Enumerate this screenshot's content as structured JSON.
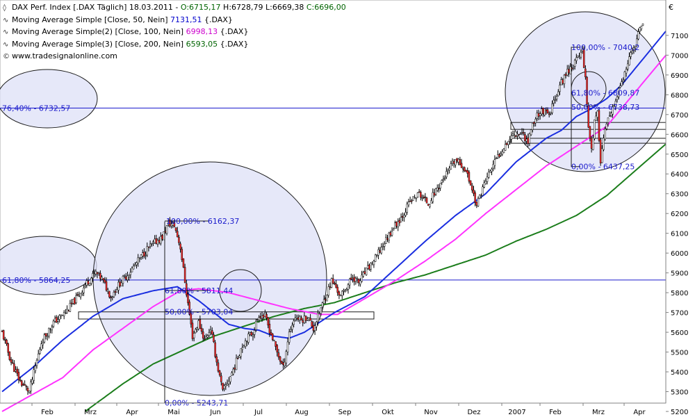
{
  "header": {
    "instrument": "DAX Perf. Index [.DAX  Täglich]",
    "date": "18.03.2011",
    "ohlc": [
      {
        "label": "O:",
        "value": "6715,17",
        "color": "#006400"
      },
      {
        "label": "H:",
        "value": "6728,79",
        "color": "#000000"
      },
      {
        "label": "L:",
        "value": "6669,38",
        "color": "#000000"
      },
      {
        "label": "C:",
        "value": "6696,00",
        "color": "#006400"
      }
    ]
  },
  "indicators": [
    {
      "name": "Moving Average Simple [Close, 50, Nein]",
      "value": "7131,51",
      "suffix": "{.DAX}",
      "color": "#0000cc"
    },
    {
      "name": "Moving Average Simple(2) [Close, 100, Nein]",
      "value": "6998,13",
      "suffix": "{.DAX}",
      "color": "#cc00cc"
    },
    {
      "name": "Moving Average Simple(3) [Close, 200, Nein]",
      "value": "6593,05",
      "suffix": "{.DAX}",
      "color": "#006400"
    }
  ],
  "watermark": "www.tradesignalonline.com",
  "chart_data": {
    "type": "candlestick",
    "currency": "€",
    "y_ticks": [
      5200,
      5300,
      5400,
      5500,
      5600,
      5700,
      5800,
      5900,
      6000,
      6100,
      6200,
      6300,
      6400,
      6500,
      6600,
      6700,
      6800,
      6900,
      7000,
      7100
    ],
    "x_ticks": [
      "Feb",
      "Mrz",
      "Apr",
      "Mai",
      "Jun",
      "Jul",
      "Aug",
      "Sep",
      "Okt",
      "Nov",
      "Dez",
      "2007",
      "Feb",
      "Mrz",
      "Apr"
    ],
    "price_path": [
      [
        0,
        5600
      ],
      [
        6,
        5450
      ],
      [
        12,
        5350
      ],
      [
        18,
        5300
      ],
      [
        26,
        5550
      ],
      [
        34,
        5650
      ],
      [
        42,
        5700
      ],
      [
        50,
        5780
      ],
      [
        56,
        5850
      ],
      [
        62,
        5900
      ],
      [
        66,
        5870
      ],
      [
        72,
        5780
      ],
      [
        78,
        5850
      ],
      [
        84,
        5900
      ],
      [
        90,
        5960
      ],
      [
        96,
        6020
      ],
      [
        102,
        6060
      ],
      [
        106,
        6080
      ],
      [
        110,
        6150
      ],
      [
        114,
        6140
      ],
      [
        118,
        6030
      ],
      [
        122,
        5800
      ],
      [
        126,
        5580
      ],
      [
        130,
        5650
      ],
      [
        134,
        5560
      ],
      [
        138,
        5620
      ],
      [
        142,
        5450
      ],
      [
        146,
        5300
      ],
      [
        150,
        5360
      ],
      [
        154,
        5430
      ],
      [
        158,
        5520
      ],
      [
        162,
        5570
      ],
      [
        166,
        5600
      ],
      [
        170,
        5690
      ],
      [
        174,
        5680
      ],
      [
        178,
        5590
      ],
      [
        182,
        5500
      ],
      [
        186,
        5420
      ],
      [
        190,
        5600
      ],
      [
        194,
        5680
      ],
      [
        198,
        5660
      ],
      [
        202,
        5680
      ],
      [
        206,
        5620
      ],
      [
        210,
        5700
      ],
      [
        214,
        5780
      ],
      [
        218,
        5860
      ],
      [
        220,
        5840
      ],
      [
        224,
        5780
      ],
      [
        228,
        5830
      ],
      [
        232,
        5880
      ],
      [
        236,
        5850
      ],
      [
        240,
        5900
      ],
      [
        246,
        5960
      ],
      [
        252,
        6040
      ],
      [
        258,
        6120
      ],
      [
        264,
        6180
      ],
      [
        270,
        6260
      ],
      [
        276,
        6300
      ],
      [
        282,
        6250
      ],
      [
        288,
        6330
      ],
      [
        294,
        6400
      ],
      [
        300,
        6470
      ],
      [
        306,
        6430
      ],
      [
        310,
        6350
      ],
      [
        314,
        6240
      ],
      [
        318,
        6330
      ],
      [
        322,
        6400
      ],
      [
        326,
        6460
      ],
      [
        332,
        6540
      ],
      [
        338,
        6600
      ],
      [
        344,
        6610
      ],
      [
        348,
        6560
      ],
      [
        350,
        6630
      ],
      [
        354,
        6700
      ],
      [
        358,
        6720
      ],
      [
        362,
        6690
      ],
      [
        366,
        6790
      ],
      [
        370,
        6860
      ],
      [
        374,
        6920
      ],
      [
        378,
        6950
      ],
      [
        382,
        7000
      ],
      [
        384,
        7030
      ],
      [
        386,
        6880
      ],
      [
        388,
        6640
      ],
      [
        390,
        6530
      ],
      [
        392,
        6660
      ],
      [
        394,
        6700
      ],
      [
        396,
        6470
      ],
      [
        398,
        6580
      ],
      [
        400,
        6650
      ],
      [
        404,
        6720
      ],
      [
        408,
        6820
      ],
      [
        412,
        6900
      ],
      [
        416,
        7000
      ],
      [
        420,
        7080
      ],
      [
        424,
        7170
      ]
    ],
    "price_dates": {
      "first": "Feb 2006",
      "last": "18.03.2011"
    },
    "ma50_path": [
      [
        0,
        5300
      ],
      [
        20,
        5420
      ],
      [
        40,
        5560
      ],
      [
        60,
        5680
      ],
      [
        80,
        5770
      ],
      [
        100,
        5810
      ],
      [
        116,
        5830
      ],
      [
        120,
        5810
      ],
      [
        130,
        5760
      ],
      [
        140,
        5700
      ],
      [
        150,
        5640
      ],
      [
        160,
        5620
      ],
      [
        170,
        5610
      ],
      [
        180,
        5580
      ],
      [
        190,
        5570
      ],
      [
        200,
        5600
      ],
      [
        210,
        5650
      ],
      [
        220,
        5700
      ],
      [
        230,
        5740
      ],
      [
        240,
        5780
      ],
      [
        260,
        5920
      ],
      [
        280,
        6060
      ],
      [
        300,
        6190
      ],
      [
        320,
        6300
      ],
      [
        340,
        6460
      ],
      [
        360,
        6580
      ],
      [
        370,
        6620
      ],
      [
        380,
        6690
      ],
      [
        390,
        6730
      ],
      [
        400,
        6780
      ],
      [
        410,
        6850
      ],
      [
        424,
        6980
      ]
    ],
    "ma100_path": [
      [
        0,
        5200
      ],
      [
        40,
        5370
      ],
      [
        60,
        5510
      ],
      [
        80,
        5620
      ],
      [
        100,
        5730
      ],
      [
        118,
        5810
      ],
      [
        130,
        5820
      ],
      [
        150,
        5800
      ],
      [
        170,
        5760
      ],
      [
        190,
        5720
      ],
      [
        210,
        5690
      ],
      [
        222,
        5690
      ],
      [
        240,
        5770
      ],
      [
        260,
        5860
      ],
      [
        280,
        5960
      ],
      [
        300,
        6070
      ],
      [
        320,
        6200
      ],
      [
        340,
        6320
      ],
      [
        360,
        6440
      ],
      [
        380,
        6540
      ],
      [
        400,
        6640
      ],
      [
        424,
        6860
      ]
    ],
    "ma200_path": [
      [
        55,
        5200
      ],
      [
        80,
        5340
      ],
      [
        100,
        5440
      ],
      [
        120,
        5510
      ],
      [
        140,
        5580
      ],
      [
        160,
        5630
      ],
      [
        180,
        5680
      ],
      [
        200,
        5720
      ],
      [
        220,
        5750
      ],
      [
        240,
        5800
      ],
      [
        260,
        5850
      ],
      [
        280,
        5890
      ],
      [
        300,
        5940
      ],
      [
        320,
        5990
      ],
      [
        340,
        6060
      ],
      [
        360,
        6120
      ],
      [
        380,
        6190
      ],
      [
        400,
        6290
      ],
      [
        424,
        6450
      ]
    ],
    "horizontal_lines": [
      6732.57,
      5864.25
    ],
    "zone_boxes": [
      [
        5703,
        5667
      ],
      [
        6660,
        6625
      ],
      [
        6580,
        6555
      ]
    ],
    "fib_labels": [
      {
        "text": "76,40% - 6732,57"
      },
      {
        "text": "61,80% - 5864,25"
      },
      {
        "text": "100,00% - 6162,37"
      },
      {
        "text": "61,80% - 5811,44"
      },
      {
        "text": "50,00% - 5703,04"
      },
      {
        "text": "0,00% - 5243,71"
      },
      {
        "text": "100,00% - 7040,2"
      },
      {
        "text": "61,80% - 6809,87"
      },
      {
        "text": "50,00% - 6738,73"
      },
      {
        "text": "0,00% - 6437,25"
      }
    ],
    "grid": false
  }
}
